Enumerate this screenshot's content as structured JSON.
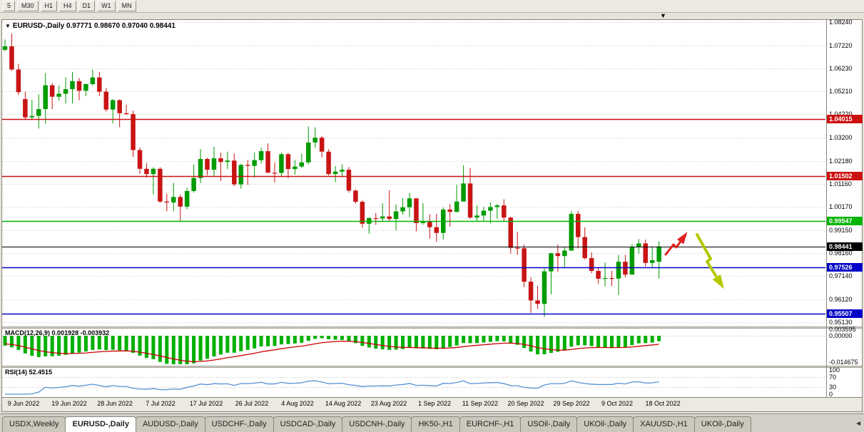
{
  "window": {
    "end_marker": "▼"
  },
  "toolbar": {
    "timeframes": [
      "5",
      "M30",
      "H1",
      "H4",
      "D1",
      "W1",
      "MN"
    ]
  },
  "chart": {
    "marker": "▼",
    "title_symbol": "EURUSD-,Daily",
    "title_quotes": "0.97771 0.98670 0.97040 0.98441"
  },
  "price_axis": {
    "ticks": [
      "1.08240",
      "1.07220",
      "1.06230",
      "1.05210",
      "1.04220",
      "1.03200",
      "1.02180",
      "1.01160",
      "1.00170",
      "0.99150",
      "0.98160",
      "0.97140",
      "0.96120",
      "0.95130"
    ]
  },
  "levels": [
    {
      "label": "1.04015",
      "value": 1.04015,
      "color": "#cc1010"
    },
    {
      "label": "1.01502",
      "value": 1.01502,
      "color": "#cc1010"
    },
    {
      "label": "0.99547",
      "value": 0.99547,
      "color": "#00b400"
    },
    {
      "label": "0.98441",
      "value": 0.98441,
      "color": "#000000"
    },
    {
      "label": "0.97526",
      "value": 0.97526,
      "color": "#0000c8"
    },
    {
      "label": "0.95507",
      "value": 0.95507,
      "color": "#0000c8"
    }
  ],
  "indicators": {
    "macd": {
      "name": "MACD(12,26,9)",
      "value_main": "0.001928",
      "value_signal": "-0.003932",
      "axis": [
        "0.003595",
        "0.00000",
        "-0.014675"
      ],
      "bar_color": "#00b000",
      "signal_color": "#cc0000"
    },
    "rsi": {
      "name": "RSI(14)",
      "value": "52.4515",
      "axis": [
        "100",
        "70",
        "30",
        "0"
      ],
      "line_color": "#5592d2"
    }
  },
  "date_axis": {
    "labels": [
      "9 Jun 2022",
      "19 Jun 2022",
      "28 Jun 2022",
      "7 Jul 2022",
      "17 Jul 2022",
      "26 Jul 2022",
      "4 Aug 2022",
      "14 Aug 2022",
      "23 Aug 2022",
      "1 Sep 2022",
      "11 Sep 2022",
      "20 Sep 2022",
      "29 Sep 2022",
      "9 Oct 2022",
      "18 Oct 2022"
    ]
  },
  "tabs": {
    "scroll_left": "◄",
    "items": [
      {
        "label": "USDX,Weekly",
        "active": false
      },
      {
        "label": "EURUSD-,Daily",
        "active": true
      },
      {
        "label": "AUDUSD-,Daily",
        "active": false
      },
      {
        "label": "USDCHF-,Daily",
        "active": false
      },
      {
        "label": "USDCAD-,Daily",
        "active": false
      },
      {
        "label": "USDCNH-,Daily",
        "active": false
      },
      {
        "label": "HK50-,H1",
        "active": false
      },
      {
        "label": "EURCHF-,H1",
        "active": false
      },
      {
        "label": "USOil-,Daily",
        "active": false
      },
      {
        "label": "UKOil-,Daily",
        "active": false
      },
      {
        "label": "XAUUSD-,H1",
        "active": false
      },
      {
        "label": "UKOil-,Daily",
        "active": false
      }
    ]
  },
  "annotations": [
    {
      "shape": "arrow",
      "trend": "up",
      "color": "#e02020",
      "width": 3,
      "points": [
        [
          933,
          357
        ],
        [
          944,
          343
        ],
        [
          948,
          347
        ],
        [
          958,
          333
        ]
      ]
    },
    {
      "shape": "arrow",
      "trend": "down",
      "color": "#b4c800",
      "width": 4,
      "points": [
        [
          977,
          329
        ],
        [
          996,
          363
        ],
        [
          991,
          367
        ],
        [
          1009,
          396
        ]
      ]
    }
  ],
  "chart_data": {
    "type": "candlestick",
    "symbol": "EURUSD-",
    "timeframe": "Daily",
    "up_color": "#009b00",
    "down_color": "#c81414",
    "ylim": [
      0.9497,
      1.0833
    ],
    "candles": [
      [
        1.0703,
        1.0748,
        1.0696,
        1.0718
      ],
      [
        1.0718,
        1.0774,
        1.0611,
        1.0617
      ],
      [
        1.0617,
        1.0642,
        1.0506,
        1.0518
      ],
      [
        1.0488,
        1.052,
        1.0399,
        1.0408
      ],
      [
        1.0408,
        1.0484,
        1.0396,
        1.0414
      ],
      [
        1.0414,
        1.0508,
        1.0359,
        1.0444
      ],
      [
        1.0444,
        1.0601,
        1.0381,
        1.0548
      ],
      [
        1.0548,
        1.0557,
        1.0444,
        1.0498
      ],
      [
        1.0498,
        1.0546,
        1.0482,
        1.0511
      ],
      [
        1.0511,
        1.0583,
        1.0469,
        1.0531
      ],
      [
        1.0531,
        1.0606,
        1.0468,
        1.0566
      ],
      [
        1.0566,
        1.058,
        1.0483,
        1.0524
      ],
      [
        1.0524,
        1.0556,
        1.0501,
        1.0553
      ],
      [
        1.0553,
        1.0615,
        1.0547,
        1.0582
      ],
      [
        1.0582,
        1.0606,
        1.0501,
        1.052
      ],
      [
        1.052,
        1.0536,
        1.0433,
        1.0442
      ],
      [
        1.0442,
        1.0488,
        1.0382,
        1.0483
      ],
      [
        1.0483,
        1.0486,
        1.0365,
        1.0426
      ],
      [
        1.0426,
        1.0463,
        1.042,
        1.0422
      ],
      [
        1.0422,
        1.0437,
        1.0235,
        1.0265
      ],
      [
        1.0265,
        1.0276,
        1.0161,
        1.0183
      ],
      [
        1.0183,
        1.0208,
        1.0143,
        1.016
      ],
      [
        1.016,
        1.019,
        1.0071,
        1.0183
      ],
      [
        1.0183,
        1.019,
        1.0035,
        1.004
      ],
      [
        1.004,
        1.0074,
        0.9998,
        1.0036
      ],
      [
        1.0036,
        1.0122,
        0.9998,
        1.006
      ],
      [
        1.006,
        1.0071,
        0.9952,
        1.0018
      ],
      [
        1.0018,
        1.0101,
        1.0006,
        1.0086
      ],
      [
        1.0086,
        1.0201,
        1.0079,
        1.0143
      ],
      [
        1.0143,
        1.0269,
        1.0121,
        1.0226
      ],
      [
        1.0226,
        1.0231,
        1.0155,
        1.0179
      ],
      [
        1.0179,
        1.0279,
        1.0152,
        1.0229
      ],
      [
        1.0229,
        1.0254,
        1.013,
        1.0213
      ],
      [
        1.0213,
        1.0258,
        1.0182,
        1.0219
      ],
      [
        1.0219,
        1.025,
        1.0108,
        1.0115
      ],
      [
        1.0115,
        1.0205,
        1.0097,
        1.02
      ],
      [
        1.02,
        1.0221,
        1.0113,
        1.0196
      ],
      [
        1.0196,
        1.0254,
        1.0144,
        1.0221
      ],
      [
        1.0221,
        1.0275,
        1.0206,
        1.026
      ],
      [
        1.026,
        1.0294,
        1.0166,
        1.0166
      ],
      [
        1.0166,
        1.021,
        1.0123,
        1.0165
      ],
      [
        1.0165,
        1.0254,
        1.0151,
        1.0247
      ],
      [
        1.0247,
        1.0253,
        1.0141,
        1.0182
      ],
      [
        1.0182,
        1.0221,
        1.0158,
        1.0193
      ],
      [
        1.0193,
        1.0249,
        1.0187,
        1.0211
      ],
      [
        1.0211,
        1.0368,
        1.0202,
        1.0298
      ],
      [
        1.0298,
        1.0364,
        1.0275,
        1.0319
      ],
      [
        1.0319,
        1.0326,
        1.0233,
        1.0258
      ],
      [
        1.0258,
        1.0269,
        1.0154,
        1.016
      ],
      [
        1.016,
        1.0195,
        1.0125,
        1.0171
      ],
      [
        1.0171,
        1.0203,
        1.0146,
        1.0179
      ],
      [
        1.0179,
        1.0191,
        1.0079,
        1.0088
      ],
      [
        1.0088,
        1.0092,
        1.0031,
        1.0039
      ],
      [
        1.0039,
        1.0046,
        0.9926,
        0.9943
      ],
      [
        0.9943,
        0.9971,
        0.99,
        0.9968
      ],
      [
        0.9968,
        0.999,
        0.9938,
        0.9966
      ],
      [
        0.9966,
        1.0033,
        0.9956,
        0.9975
      ],
      [
        0.9975,
        1.009,
        0.9955,
        0.9964
      ],
      [
        0.9964,
        1.0027,
        0.9914,
        0.9997
      ],
      [
        0.9997,
        1.0055,
        0.9983,
        1.0015
      ],
      [
        1.0015,
        1.0079,
        0.9972,
        1.0054
      ],
      [
        1.0054,
        1.0055,
        0.991,
        0.9946
      ],
      [
        0.9946,
        1.0033,
        0.9939,
        0.9952
      ],
      [
        0.9952,
        0.9985,
        0.9878,
        0.9928
      ],
      [
        0.9928,
        0.9986,
        0.9864,
        0.9903
      ],
      [
        0.9903,
        1.0014,
        0.9874,
        1.0005
      ],
      [
        1.0005,
        1.0029,
        0.993,
        0.9995
      ],
      [
        0.9995,
        1.0113,
        0.9993,
        1.004
      ],
      [
        1.004,
        1.0198,
        1.004,
        1.0119
      ],
      [
        1.0119,
        1.0187,
        0.9964,
        0.997
      ],
      [
        0.997,
        1.0023,
        0.9955,
        0.9979
      ],
      [
        0.9979,
        1.0017,
        0.9955,
        1.0
      ],
      [
        1.0,
        1.0036,
        0.9945,
        1.0016
      ],
      [
        1.0016,
        1.0029,
        0.9964,
        1.0023
      ],
      [
        1.0023,
        1.005,
        0.9955,
        0.997
      ],
      [
        0.997,
        0.9974,
        0.9813,
        0.9838
      ],
      [
        0.9838,
        0.9907,
        0.9807,
        0.9836
      ],
      [
        0.9836,
        0.9852,
        0.9666,
        0.969
      ],
      [
        0.969,
        0.9709,
        0.9554,
        0.9608
      ],
      [
        0.9608,
        0.9672,
        0.9571,
        0.9593
      ],
      [
        0.9593,
        0.975,
        0.9536,
        0.9735
      ],
      [
        0.9735,
        0.9816,
        0.9634,
        0.9814
      ],
      [
        0.9814,
        0.9853,
        0.9733,
        0.9802
      ],
      [
        0.9802,
        0.9843,
        0.9752,
        0.9826
      ],
      [
        0.9826,
        0.9999,
        0.9824,
        0.9986
      ],
      [
        0.9986,
        0.9999,
        0.9835,
        0.9885
      ],
      [
        0.9885,
        0.9927,
        0.9787,
        0.9793
      ],
      [
        0.9793,
        0.9818,
        0.9727,
        0.9737
      ],
      [
        0.9737,
        0.9752,
        0.9681,
        0.9703
      ],
      [
        0.9703,
        0.9774,
        0.967,
        0.9706
      ],
      [
        0.9706,
        0.9737,
        0.9671,
        0.9704
      ],
      [
        0.9704,
        0.9807,
        0.9632,
        0.9777
      ],
      [
        0.9777,
        0.9807,
        0.9709,
        0.9721
      ],
      [
        0.9721,
        0.9854,
        0.9721,
        0.984
      ],
      [
        0.984,
        0.9876,
        0.9813,
        0.9857
      ],
      [
        0.9857,
        0.9874,
        0.9756,
        0.9772
      ],
      [
        0.9772,
        0.9845,
        0.9754,
        0.9784
      ],
      [
        0.9777,
        0.9867,
        0.9704,
        0.9844
      ]
    ]
  }
}
